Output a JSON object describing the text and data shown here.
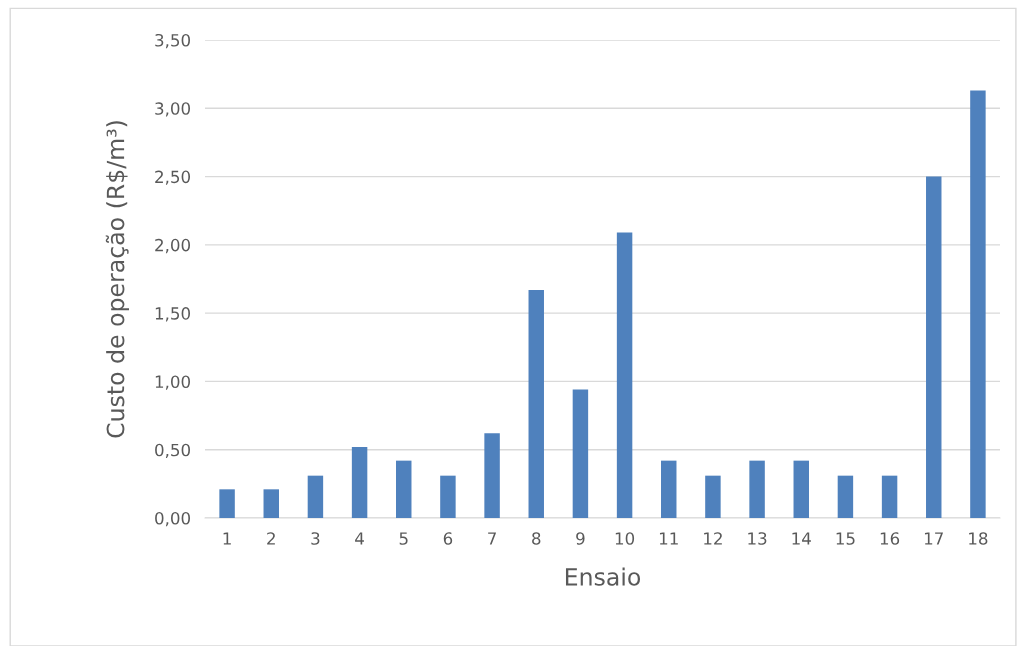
{
  "chart_data": {
    "type": "bar",
    "xlabel": "Ensaio",
    "ylabel": "Custo de operação (R$/m³)",
    "categories": [
      "1",
      "2",
      "3",
      "4",
      "5",
      "6",
      "7",
      "8",
      "9",
      "10",
      "11",
      "12",
      "13",
      "14",
      "15",
      "16",
      "17",
      "18"
    ],
    "values": [
      0.21,
      0.21,
      0.31,
      0.52,
      0.42,
      0.31,
      0.62,
      1.67,
      0.94,
      2.09,
      0.42,
      0.31,
      0.42,
      0.42,
      0.31,
      0.31,
      2.5,
      3.13
    ],
    "color": "#4f81bd",
    "ylim": [
      0,
      3.5
    ],
    "yticks": [
      {
        "value": 0,
        "label": "0,00"
      },
      {
        "value": 0.5,
        "label": "0,50"
      },
      {
        "value": 1,
        "label": "1,00"
      },
      {
        "value": 1.5,
        "label": "1,50"
      },
      {
        "value": 2,
        "label": "2,00"
      },
      {
        "value": 2.5,
        "label": "2,50"
      },
      {
        "value": 3,
        "label": "3,00"
      },
      {
        "value": 3.5,
        "label": "3,50"
      }
    ],
    "grid": "y"
  }
}
